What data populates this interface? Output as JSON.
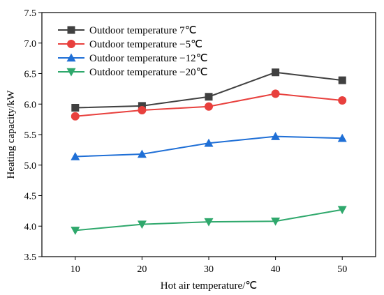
{
  "chart_data": {
    "type": "line",
    "title": "",
    "xlabel": "Hot air temperature/℃",
    "ylabel": "Heating capacity/kW",
    "x": [
      10,
      20,
      30,
      40,
      50
    ],
    "xlim": [
      5,
      55
    ],
    "ylim": [
      3.5,
      7.5
    ],
    "xticks": [
      "10",
      "20",
      "30",
      "40",
      "50"
    ],
    "yticks": [
      "3.5",
      "4.0",
      "4.5",
      "5.0",
      "5.5",
      "6.0",
      "6.5",
      "7.0",
      "7.5"
    ],
    "grid": false,
    "legend_position": "top-left",
    "series": [
      {
        "name": "Outdoor temperature 7℃",
        "color": "#404040",
        "marker": "square",
        "values": [
          5.94,
          5.97,
          6.12,
          6.52,
          6.39
        ]
      },
      {
        "name": "Outdoor temperature −5℃",
        "color": "#e8403d",
        "marker": "circle",
        "values": [
          5.8,
          5.9,
          5.96,
          6.17,
          6.06
        ]
      },
      {
        "name": "Outdoor temperature −12℃",
        "color": "#1f6fd6",
        "marker": "triangle-up",
        "values": [
          5.14,
          5.18,
          5.36,
          5.47,
          5.44
        ]
      },
      {
        "name": "Outdoor temperature −20℃",
        "color": "#2fa86c",
        "marker": "triangle-down",
        "values": [
          3.93,
          4.03,
          4.07,
          4.08,
          4.27
        ]
      }
    ]
  }
}
